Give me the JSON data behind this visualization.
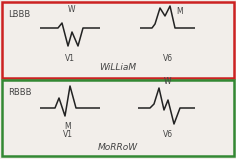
{
  "lbbb_label": "LBBB",
  "rbbb_label": "RBBB",
  "v1_label": "V1",
  "v6_label": "V6",
  "lbbb_mnemonic": "WiLLiaM",
  "rbbb_mnemonic": "MoRRoW",
  "lbbb_v1_peak_label": "W",
  "lbbb_v6_peak_label": "M",
  "rbbb_v1_peak_label": "M",
  "rbbb_v6_peak_label": "W",
  "top_box_color": "#cc2222",
  "bottom_box_color": "#338833",
  "bg_color": "#f2eeea",
  "line_color": "#222222",
  "text_color": "#444444",
  "figsize": [
    2.36,
    1.59
  ],
  "dpi": 100
}
